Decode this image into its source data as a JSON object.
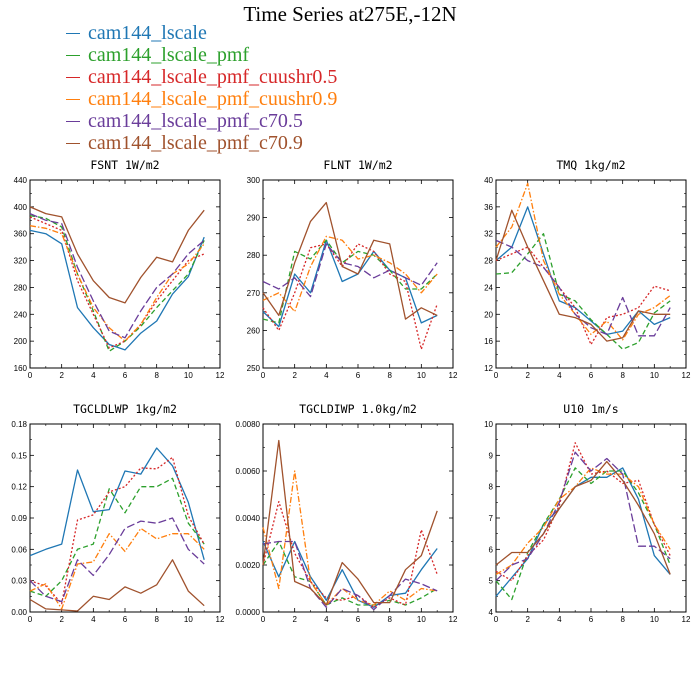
{
  "page_title": "Time Series at275E,-12N",
  "legend": [
    {
      "label": "cam144_lscale",
      "color": "#1f77b4",
      "dash": "solid"
    },
    {
      "label": "cam144_lscale_pmf",
      "color": "#2ca02c",
      "dash": "dash"
    },
    {
      "label": "cam144_lscale_pmf_cuushr0.5",
      "color": "#d62728",
      "dash": "dot"
    },
    {
      "label": "cam144_lscale_pmf_cuushr0.9",
      "color": "#ff7f0e",
      "dash": "dashdot"
    },
    {
      "label": "cam144_lscale_pmf_c70.5",
      "color": "#6a3d9a",
      "dash": "longdash"
    },
    {
      "label": "cam144_lscale_pmf_c70.9",
      "color": "#a0522d",
      "dash": "solid"
    }
  ],
  "chart_data": [
    {
      "type": "line",
      "title": "FSNT",
      "units": "1W/m2",
      "x": [
        0,
        1,
        2,
        3,
        4,
        5,
        6,
        7,
        8,
        9,
        10,
        11
      ],
      "xlim": [
        0,
        12
      ],
      "xticks": [
        0,
        2,
        4,
        6,
        8,
        10,
        12
      ],
      "xtick_labels": [
        "0",
        "2",
        "4",
        "6",
        "8",
        "10",
        "12"
      ],
      "ylim": [
        160,
        440
      ],
      "yticks": [
        160,
        200,
        240,
        280,
        320,
        360,
        400,
        440
      ],
      "ytick_labels": [
        "160",
        "200",
        "240",
        "280",
        "320",
        "360",
        "400",
        "440"
      ],
      "series": [
        {
          "name": "cam144_lscale",
          "values": [
            365,
            360,
            345,
            250,
            220,
            195,
            187,
            212,
            230,
            270,
            296,
            355
          ]
        },
        {
          "name": "cam144_lscale_pmf",
          "values": [
            387,
            383,
            370,
            300,
            245,
            185,
            200,
            222,
            250,
            275,
            300,
            350
          ]
        },
        {
          "name": "cam144_lscale_pmf_cuushr0.5",
          "values": [
            385,
            375,
            365,
            290,
            240,
            190,
            200,
            225,
            260,
            290,
            320,
            330
          ]
        },
        {
          "name": "cam144_lscale_pmf_cuushr0.9",
          "values": [
            372,
            368,
            360,
            300,
            250,
            220,
            200,
            225,
            265,
            300,
            315,
            345
          ]
        },
        {
          "name": "cam144_lscale_pmf_c70.5",
          "values": [
            390,
            380,
            375,
            310,
            260,
            215,
            205,
            245,
            280,
            300,
            330,
            350
          ]
        },
        {
          "name": "cam144_lscale_pmf_c70.9",
          "values": [
            400,
            390,
            385,
            330,
            290,
            265,
            257,
            295,
            325,
            318,
            365,
            395
          ]
        }
      ]
    },
    {
      "type": "line",
      "title": "FLNT",
      "units": "1W/m2",
      "x": [
        0,
        1,
        2,
        3,
        4,
        5,
        6,
        7,
        8,
        9,
        10,
        11
      ],
      "xlim": [
        0,
        12
      ],
      "xticks": [
        0,
        2,
        4,
        6,
        8,
        10,
        12
      ],
      "xtick_labels": [
        "0",
        "2",
        "4",
        "6",
        "8",
        "10",
        "12"
      ],
      "ylim": [
        250,
        300
      ],
      "yticks": [
        250,
        260,
        270,
        280,
        290,
        300
      ],
      "ytick_labels": [
        "250",
        "260",
        "270",
        "280",
        "290",
        "300"
      ],
      "series": [
        {
          "name": "cam144_lscale",
          "values": [
            265,
            261,
            275,
            270,
            284,
            273,
            275,
            281,
            276,
            274,
            262,
            264
          ]
        },
        {
          "name": "cam144_lscale_pmf",
          "values": [
            263,
            262,
            281,
            279,
            284,
            278,
            281,
            280,
            276,
            271,
            271,
            275
          ]
        },
        {
          "name": "cam144_lscale_pmf_cuushr0.5",
          "values": [
            266,
            260,
            270,
            282,
            283,
            277,
            283,
            281,
            275,
            273,
            255,
            267
          ]
        },
        {
          "name": "cam144_lscale_pmf_cuushr0.9",
          "values": [
            268,
            270,
            265,
            277,
            285,
            284,
            279,
            280,
            278,
            275,
            270,
            275
          ]
        },
        {
          "name": "cam144_lscale_pmf_c70.5",
          "values": [
            273,
            271,
            274,
            269,
            283,
            278,
            277,
            274,
            276,
            274,
            272,
            278
          ]
        },
        {
          "name": "cam144_lscale_pmf_c70.9",
          "values": [
            270,
            264,
            278,
            289,
            294,
            277,
            275,
            284,
            283,
            263,
            266,
            264
          ]
        }
      ]
    },
    {
      "type": "line",
      "title": "TMQ",
      "units": "1kg/m2",
      "x": [
        0,
        1,
        2,
        3,
        4,
        5,
        6,
        7,
        8,
        9,
        10,
        11
      ],
      "xlim": [
        0,
        12
      ],
      "xticks": [
        0,
        2,
        4,
        6,
        8,
        10,
        12
      ],
      "xtick_labels": [
        "0",
        "2",
        "4",
        "6",
        "8",
        "10",
        "12"
      ],
      "ylim": [
        12,
        40
      ],
      "yticks": [
        12,
        16,
        20,
        24,
        28,
        32,
        36,
        40
      ],
      "ytick_labels": [
        "12",
        "16",
        "20",
        "24",
        "28",
        "32",
        "36",
        "40"
      ],
      "series": [
        {
          "name": "cam144_lscale",
          "values": [
            28,
            30,
            36,
            29,
            22,
            21,
            19,
            17,
            17.5,
            20.5,
            18.5,
            19.5
          ]
        },
        {
          "name": "cam144_lscale_pmf",
          "values": [
            26,
            26.2,
            29,
            32,
            23,
            22,
            19.2,
            17,
            14.8,
            15.8,
            20.2,
            22
          ]
        },
        {
          "name": "cam144_lscale_pmf_cuushr0.5",
          "values": [
            28,
            29,
            30,
            27,
            24,
            21,
            15.5,
            19.5,
            20,
            21,
            24.2,
            23.5
          ]
        },
        {
          "name": "cam144_lscale_pmf_cuushr0.9",
          "values": [
            30,
            33,
            39.5,
            28,
            23,
            20,
            17,
            19,
            16.2,
            20,
            21,
            22.8
          ]
        },
        {
          "name": "cam144_lscale_pmf_c70.5",
          "values": [
            31,
            30,
            28,
            27,
            24,
            20,
            18,
            17,
            22.5,
            16.8,
            16.8,
            21
          ]
        },
        {
          "name": "cam144_lscale_pmf_c70.9",
          "values": [
            28,
            35.5,
            30,
            25,
            20,
            19.5,
            18.5,
            16,
            16.5,
            20.5,
            20,
            20
          ]
        }
      ]
    },
    {
      "type": "line",
      "title": "TGCLDLWP",
      "units": "1kg/m2",
      "x": [
        0,
        1,
        2,
        3,
        4,
        5,
        6,
        7,
        8,
        9,
        10,
        11
      ],
      "xlim": [
        0,
        12
      ],
      "xticks": [
        0,
        2,
        4,
        6,
        8,
        10,
        12
      ],
      "xtick_labels": [
        "0",
        "2",
        "4",
        "6",
        "8",
        "10",
        "12"
      ],
      "ylim": [
        0,
        0.18
      ],
      "yticks": [
        0,
        0.03,
        0.06,
        0.09,
        0.12,
        0.15,
        0.18
      ],
      "ytick_labels": [
        "0.00",
        "0.03",
        "0.06",
        "0.09",
        "0.12",
        "0.15",
        "0.18"
      ],
      "series": [
        {
          "name": "cam144_lscale",
          "values": [
            0.054,
            0.06,
            0.065,
            0.136,
            0.096,
            0.098,
            0.135,
            0.132,
            0.157,
            0.14,
            0.105,
            0.05
          ]
        },
        {
          "name": "cam144_lscale_pmf",
          "values": [
            0.02,
            0.015,
            0.03,
            0.06,
            0.065,
            0.118,
            0.095,
            0.12,
            0.12,
            0.128,
            0.085,
            0.065
          ]
        },
        {
          "name": "cam144_lscale_pmf_cuushr0.5",
          "values": [
            0.03,
            0.025,
            0.008,
            0.088,
            0.093,
            0.115,
            0.12,
            0.138,
            0.137,
            0.148,
            0.092,
            0.065
          ]
        },
        {
          "name": "cam144_lscale_pmf_cuushr0.9",
          "values": [
            0.02,
            0.027,
            0.003,
            0.046,
            0.048,
            0.075,
            0.058,
            0.08,
            0.07,
            0.075,
            0.075,
            0.06
          ]
        },
        {
          "name": "cam144_lscale_pmf_c70.5",
          "values": [
            0.03,
            0.015,
            0.01,
            0.05,
            0.035,
            0.055,
            0.08,
            0.087,
            0.085,
            0.09,
            0.06,
            0.046
          ]
        },
        {
          "name": "cam144_lscale_pmf_c70.9",
          "values": [
            0.012,
            0.003,
            0.002,
            0.001,
            0.015,
            0.012,
            0.024,
            0.018,
            0.026,
            0.05,
            0.02,
            0.006
          ]
        }
      ]
    },
    {
      "type": "line",
      "title": "TGCLDIWP",
      "units": "1.0kg/m2",
      "x": [
        0,
        1,
        2,
        3,
        4,
        5,
        6,
        7,
        8,
        9,
        10,
        11
      ],
      "xlim": [
        0,
        12
      ],
      "xticks": [
        0,
        2,
        4,
        6,
        8,
        10,
        12
      ],
      "xtick_labels": [
        "0",
        "2",
        "4",
        "6",
        "8",
        "10",
        "12"
      ],
      "ylim": [
        0,
        0.008
      ],
      "yticks": [
        0,
        0.002,
        0.004,
        0.006,
        0.008
      ],
      "ytick_labels": [
        "0.0000",
        "0.0020",
        "0.0040",
        "0.0060",
        "0.0080"
      ],
      "series": [
        {
          "name": "cam144_lscale",
          "values": [
            0.003,
            0.0015,
            0.003,
            0.0015,
            0.0005,
            0.0018,
            0.0005,
            0.0002,
            0.0007,
            0.0008,
            0.0018,
            0.0027
          ]
        },
        {
          "name": "cam144_lscale_pmf",
          "values": [
            0.002,
            0.003,
            0.0015,
            0.0013,
            0.0003,
            0.0006,
            0.0003,
            0.0003,
            0.0005,
            0.0003,
            0.0006,
            0.001
          ]
        },
        {
          "name": "cam144_lscale_pmf_cuushr0.5",
          "values": [
            0.002,
            0.0047,
            0.0025,
            0.0013,
            0.0006,
            0.0005,
            0.0007,
            0.0002,
            0.0006,
            0.0003,
            0.0035,
            0.0016
          ]
        },
        {
          "name": "cam144_lscale_pmf_cuushr0.9",
          "values": [
            0.0036,
            0.001,
            0.006,
            0.0013,
            0.0003,
            0.001,
            0.0005,
            0.0003,
            0.0009,
            0.0005,
            0.001,
            0.0009
          ]
        },
        {
          "name": "cam144_lscale_pmf_c70.5",
          "values": [
            0.0029,
            0.003,
            0.003,
            0.001,
            0.0002,
            0.001,
            0.0007,
            0.0001,
            0.0007,
            0.0014,
            0.0012,
            0.0009
          ]
        },
        {
          "name": "cam144_lscale_pmf_c70.9",
          "values": [
            0.002,
            0.0073,
            0.0013,
            0.001,
            0.0003,
            0.0021,
            0.0014,
            0.0004,
            0.0004,
            0.0018,
            0.0024,
            0.0043
          ]
        }
      ]
    },
    {
      "type": "line",
      "title": "U10",
      "units": "1m/s",
      "x": [
        0,
        1,
        2,
        3,
        4,
        5,
        6,
        7,
        8,
        9,
        10,
        11
      ],
      "xlim": [
        0,
        12
      ],
      "xticks": [
        0,
        2,
        4,
        6,
        8,
        10,
        12
      ],
      "xtick_labels": [
        "0",
        "2",
        "4",
        "6",
        "8",
        "10",
        "12"
      ],
      "ylim": [
        4,
        10
      ],
      "yticks": [
        4,
        5,
        6,
        7,
        8,
        9,
        10
      ],
      "ytick_labels": [
        "4",
        "5",
        "6",
        "7",
        "8",
        "9",
        "10"
      ],
      "series": [
        {
          "name": "cam144_lscale",
          "values": [
            4.5,
            5.1,
            5.7,
            6.8,
            7.3,
            8,
            8.3,
            8.3,
            8.6,
            7.6,
            5.8,
            5.2
          ]
        },
        {
          "name": "cam144_lscale_pmf",
          "values": [
            5,
            4.4,
            5.9,
            6.8,
            7.6,
            8.6,
            8.1,
            8.5,
            8.5,
            7.8,
            6.8,
            5.5
          ]
        },
        {
          "name": "cam144_lscale_pmf_cuushr0.5",
          "values": [
            5.3,
            5,
            5.8,
            6.3,
            7.4,
            9.4,
            8.4,
            8.5,
            8.1,
            8.2,
            6.8,
            5.8
          ]
        },
        {
          "name": "cam144_lscale_pmf_cuushr0.9",
          "values": [
            5.2,
            5.5,
            6.2,
            6.7,
            7.6,
            8,
            8.6,
            8.4,
            8.4,
            8,
            6.8,
            6
          ]
        },
        {
          "name": "cam144_lscale_pmf_c70.5",
          "values": [
            5,
            5.5,
            5.7,
            6.5,
            7.5,
            9.1,
            8.5,
            8.9,
            8.4,
            6.1,
            6.1,
            5.7
          ]
        },
        {
          "name": "cam144_lscale_pmf_c70.9",
          "values": [
            5.5,
            5.9,
            5.9,
            6.5,
            7.3,
            8,
            8.2,
            8.8,
            8.2,
            7.4,
            6.5,
            5.2
          ]
        }
      ]
    }
  ]
}
